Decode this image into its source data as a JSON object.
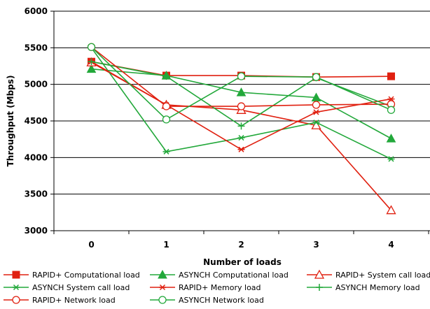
{
  "chart_data": {
    "type": "line",
    "xlabel": "Number of loads",
    "ylabel": "Throughput (Mbps)",
    "x": [
      0,
      1,
      2,
      3,
      4
    ],
    "x_tick_labels": [
      "0",
      "1",
      "2",
      "3",
      "4"
    ],
    "ylim": [
      3000,
      6000
    ],
    "y_ticks": [
      3000,
      3500,
      4000,
      4500,
      5000,
      5500,
      6000
    ],
    "grid": "horizontal",
    "legend": "bottom",
    "series": [
      {
        "name": "RAPID+ Computational load",
        "values": [
          5310,
          5120,
          5120,
          5100,
          5110
        ],
        "color": "#e02010",
        "marker": "square-filled"
      },
      {
        "name": "ASYNCH Computational load",
        "values": [
          5210,
          5120,
          4890,
          4820,
          4260
        ],
        "color": "#22a83a",
        "marker": "triangle-filled"
      },
      {
        "name": "RAPID+ System call load",
        "values": [
          5300,
          4720,
          4650,
          4440,
          3280
        ],
        "color": "#e02010",
        "marker": "triangle-open"
      },
      {
        "name": "ASYNCH System call load",
        "values": [
          5500,
          4080,
          4270,
          4480,
          3980
        ],
        "color": "#22a83a",
        "marker": "asterisk"
      },
      {
        "name": "RAPID+ Memory load",
        "values": [
          5310,
          4720,
          4110,
          4620,
          4800
        ],
        "color": "#e02010",
        "marker": "asterisk"
      },
      {
        "name": "ASYNCH Memory load",
        "values": [
          5310,
          5110,
          4430,
          5090,
          4700
        ],
        "color": "#22a83a",
        "marker": "plus"
      },
      {
        "name": "RAPID+ Network load",
        "values": [
          5510,
          4700,
          4700,
          4720,
          4730
        ],
        "color": "#e02010",
        "marker": "circle-open"
      },
      {
        "name": "ASYNCH Network load",
        "values": [
          5510,
          4520,
          5110,
          5100,
          4650
        ],
        "color": "#22a83a",
        "marker": "circle-open"
      }
    ]
  }
}
